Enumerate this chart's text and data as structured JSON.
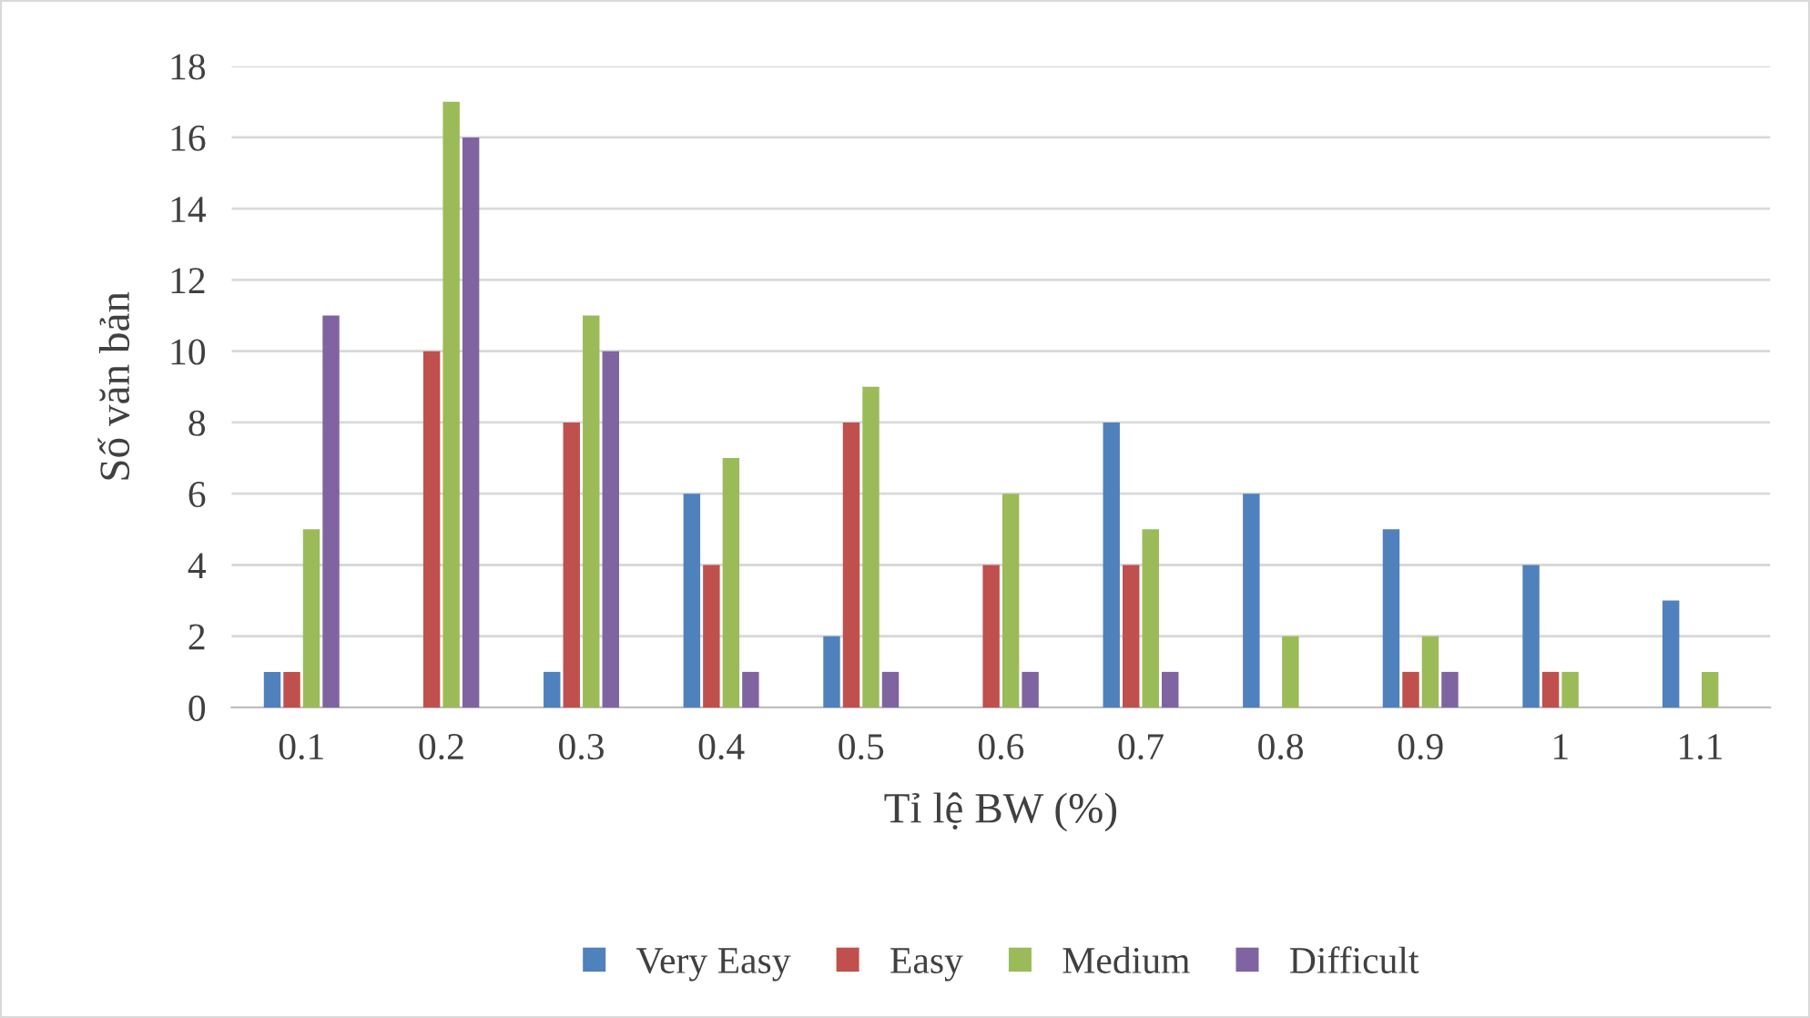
{
  "chart_data": {
    "type": "bar",
    "xlabel": "Tỉ lệ BW (%)",
    "ylabel": "Số văn bản",
    "categories": [
      "0.1",
      "0.2",
      "0.3",
      "0.4",
      "0.5",
      "0.6",
      "0.7",
      "0.8",
      "0.9",
      "1",
      "1.1"
    ],
    "series": [
      {
        "name": "Very Easy",
        "color": "#4f81bd",
        "values": [
          1,
          0,
          1,
          6,
          2,
          0,
          8,
          6,
          5,
          4,
          3
        ]
      },
      {
        "name": "Easy",
        "color": "#c0504d",
        "values": [
          1,
          10,
          8,
          4,
          8,
          4,
          4,
          0,
          1,
          1,
          0
        ]
      },
      {
        "name": "Medium",
        "color": "#9bbb59",
        "values": [
          5,
          17,
          11,
          7,
          9,
          6,
          5,
          2,
          2,
          1,
          1
        ]
      },
      {
        "name": "Difficult",
        "color": "#8064a2",
        "values": [
          11,
          16,
          10,
          1,
          1,
          1,
          1,
          0,
          1,
          0,
          0
        ]
      }
    ],
    "ylim": [
      0,
      18
    ],
    "yticks": [
      0,
      2,
      4,
      6,
      8,
      10,
      12,
      14,
      16,
      18
    ],
    "grid": "y",
    "legend": "bottom"
  }
}
